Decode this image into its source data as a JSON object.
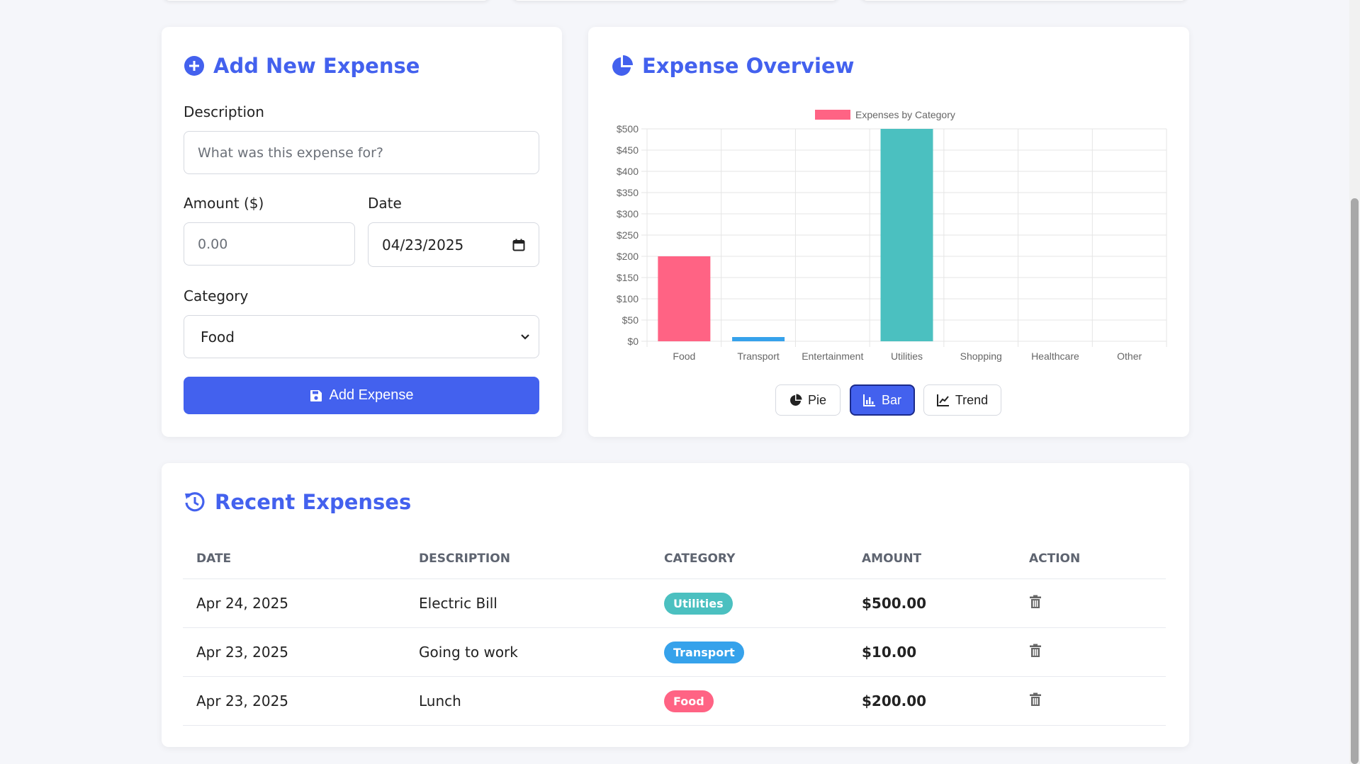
{
  "add_expense": {
    "title": "Add New Expense",
    "description_label": "Description",
    "description_placeholder": "What was this expense for?",
    "amount_label": "Amount ($)",
    "amount_placeholder": "0.00",
    "date_label": "Date",
    "date_value": "04/23/2025",
    "category_label": "Category",
    "category_value": "Food",
    "submit_label": "Add Expense"
  },
  "overview": {
    "title": "Expense Overview",
    "buttons": [
      {
        "label": "Pie",
        "icon": "pie-chart-icon",
        "active": false
      },
      {
        "label": "Bar",
        "icon": "bar-chart-icon",
        "active": true
      },
      {
        "label": "Trend",
        "icon": "line-chart-icon",
        "active": false
      }
    ]
  },
  "chart_data": {
    "type": "bar",
    "title": "",
    "legend": "top",
    "grid": true,
    "categories": [
      "Food",
      "Transport",
      "Entertainment",
      "Utilities",
      "Shopping",
      "Healthcare",
      "Other"
    ],
    "series": [
      {
        "name": "Expenses by Category",
        "values": [
          200,
          10,
          0,
          500,
          0,
          0,
          0
        ],
        "colors": [
          "#ff6384",
          "#36a2eb",
          "#ffce56",
          "#4bc0c0",
          "#9966ff",
          "#ff9f40",
          "#c9cbcf"
        ]
      }
    ],
    "yticks": [
      "$0",
      "$50",
      "$100",
      "$150",
      "$200",
      "$250",
      "$300",
      "$350",
      "$400",
      "$450",
      "$500"
    ],
    "ylim": [
      0,
      500
    ],
    "legend_color": "#ff6384"
  },
  "recent": {
    "title": "Recent Expenses",
    "columns": [
      "DATE",
      "DESCRIPTION",
      "CATEGORY",
      "AMOUNT",
      "ACTION"
    ],
    "rows": [
      {
        "date": "Apr 24, 2025",
        "description": "Electric Bill",
        "category": "Utilities",
        "color": "#4bc0c0",
        "amount": "$500.00"
      },
      {
        "date": "Apr 23, 2025",
        "description": "Going to work",
        "category": "Transport",
        "color": "#36a2eb",
        "amount": "$10.00"
      },
      {
        "date": "Apr 23, 2025",
        "description": "Lunch",
        "category": "Food",
        "color": "#ff6384",
        "amount": "$200.00"
      }
    ]
  },
  "colors": {
    "accent": "#4361ee",
    "background": "#f5f6fa"
  }
}
